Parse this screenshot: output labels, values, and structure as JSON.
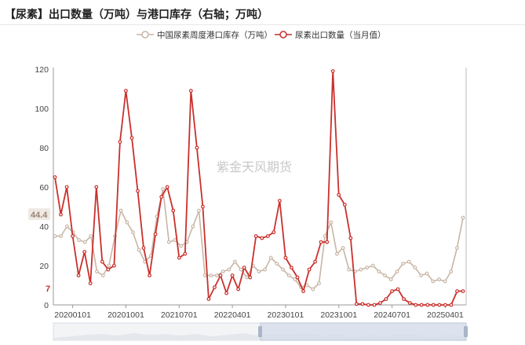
{
  "title": "【尿素】出口数量（万吨）与港口库存（右轴；万吨）",
  "watermark": "紫金天风期货",
  "colors": {
    "inventory": "#c8b6a6",
    "export": "#c9302c",
    "axis": "#999999",
    "label_inventory_bg": "#efe9e3",
    "slider_fill": "#d6deeb",
    "slider_border": "#b9c4d4"
  },
  "chart_data": {
    "type": "line",
    "title": "【尿素】出口数量（万吨）与港口库存（右轴；万吨）",
    "x_tick_labels": [
      "20200101",
      "20201001",
      "20210701",
      "20220401",
      "20230101",
      "20231001",
      "20240701",
      "20250401"
    ],
    "ylim": [
      0,
      120
    ],
    "y_ticks": [
      0,
      20,
      40,
      60,
      80,
      100,
      120
    ],
    "grid": false,
    "legend_position": "top-center",
    "end_labels": {
      "inventory": "44.4",
      "export": "7"
    },
    "series": [
      {
        "name": "中国尿素周度港口库存（万吨）",
        "values": [
          35,
          35,
          40,
          37,
          33,
          32,
          35,
          17,
          15,
          20,
          35,
          48,
          42,
          37,
          28,
          22,
          25,
          45,
          59,
          32,
          33,
          30,
          32,
          40,
          48,
          15,
          15,
          15,
          17,
          18,
          22,
          18,
          14,
          20,
          17,
          18,
          24,
          21,
          18,
          15,
          13,
          9,
          10,
          8,
          11,
          35,
          42,
          26,
          29,
          18,
          17,
          18,
          19,
          20,
          17,
          15,
          13,
          17,
          21,
          22,
          19,
          15,
          16,
          12,
          13,
          12,
          17,
          29,
          44.4
        ]
      },
      {
        "name": "尿素出口数量（当月值）",
        "values": [
          65,
          46,
          60,
          35,
          15,
          27,
          11,
          60,
          22,
          18,
          20,
          83,
          109,
          85,
          58,
          29,
          15,
          36,
          55,
          60,
          48,
          24,
          26,
          109,
          80,
          50,
          3,
          9,
          15,
          6,
          15,
          8,
          19,
          14,
          35,
          34,
          35,
          37,
          53,
          24,
          19,
          14,
          7,
          18,
          22,
          32,
          32,
          119,
          56,
          51,
          34,
          0.5,
          0.5,
          0,
          0,
          1,
          3,
          7,
          8,
          3,
          1,
          0,
          0,
          0,
          0,
          0,
          0,
          0,
          7,
          7
        ]
      }
    ]
  }
}
